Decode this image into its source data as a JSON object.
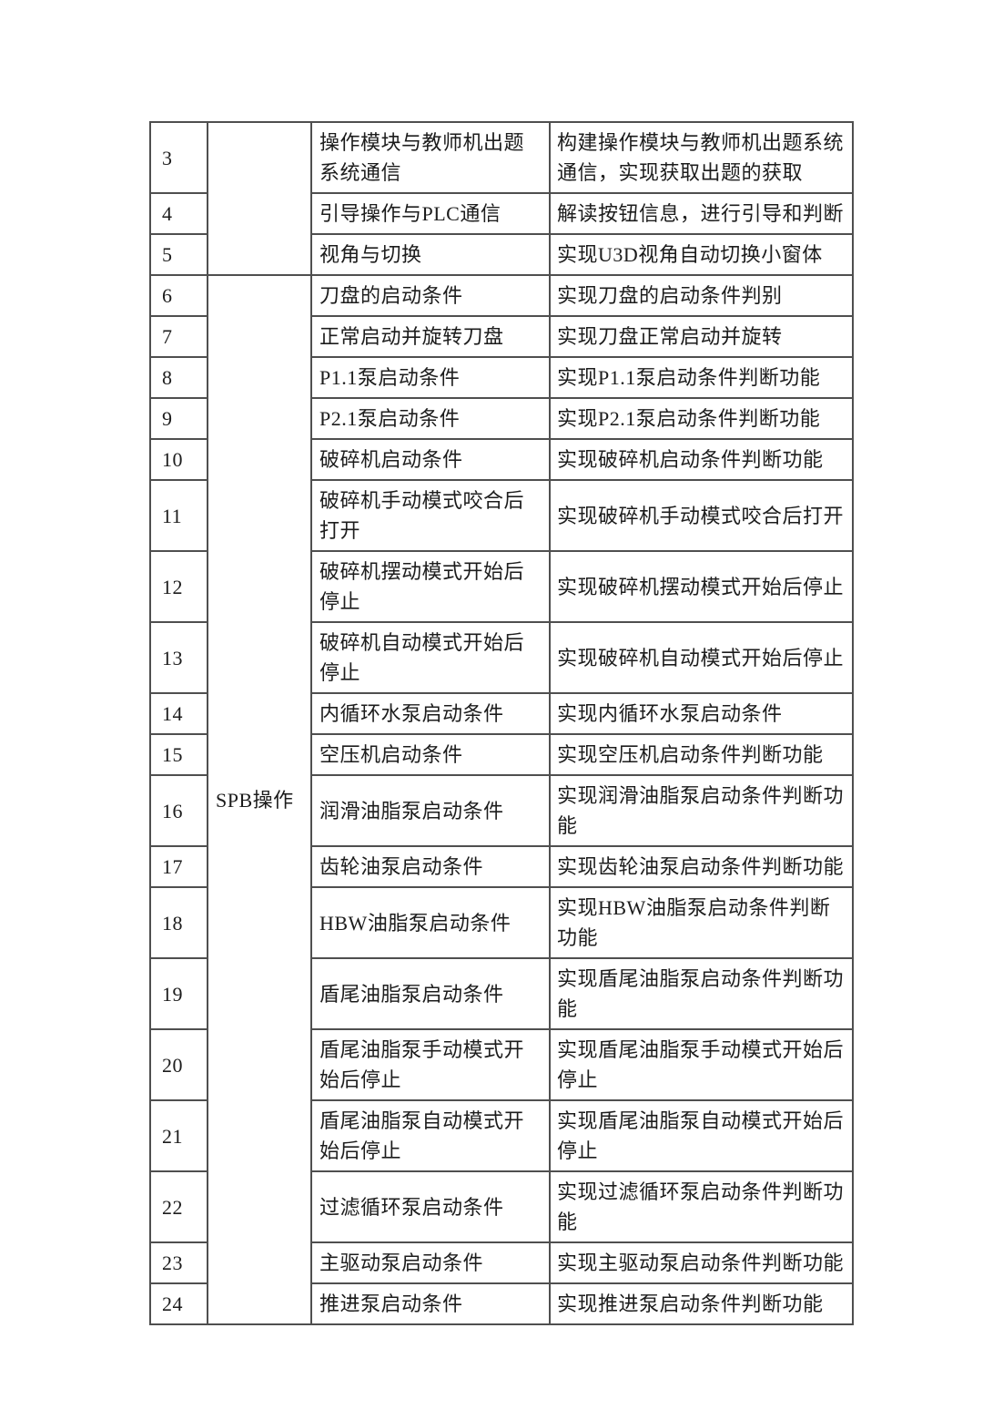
{
  "page": {
    "background_color": "#ffffff"
  },
  "table": {
    "border_color": "#4f4f4f",
    "text_color": "#1c1c1c",
    "sections": [
      {
        "category_label": "",
        "rows": [
          {
            "num": "3",
            "task": "操作模块与教师机出题系统通信",
            "desc": "构建操作模块与教师机出题系统通信，实现获取出题的获取"
          },
          {
            "num": "4",
            "task": "引导操作与PLC通信",
            "desc": "解读按钮信息，进行引导和判断"
          },
          {
            "num": "5",
            "task": "视角与切换",
            "desc": "实现U3D视角自动切换小窗体"
          }
        ]
      },
      {
        "category_label": "SPB操作",
        "rows": [
          {
            "num": "6",
            "task": "刀盘的启动条件",
            "desc": "实现刀盘的启动条件判别"
          },
          {
            "num": "7",
            "task": "正常启动并旋转刀盘",
            "desc": "实现刀盘正常启动并旋转"
          },
          {
            "num": "8",
            "task": "P1.1泵启动条件",
            "desc": "实现P1.1泵启动条件判断功能"
          },
          {
            "num": "9",
            "task": "P2.1泵启动条件",
            "desc": "实现P2.1泵启动条件判断功能"
          },
          {
            "num": "10",
            "task": "破碎机启动条件",
            "desc": "实现破碎机启动条件判断功能"
          },
          {
            "num": "11",
            "task": "破碎机手动模式咬合后打开",
            "desc": "实现破碎机手动模式咬合后打开"
          },
          {
            "num": "12",
            "task": "破碎机摆动模式开始后停止",
            "desc": "实现破碎机摆动模式开始后停止"
          },
          {
            "num": "13",
            "task": "破碎机自动模式开始后停止",
            "desc": "实现破碎机自动模式开始后停止"
          },
          {
            "num": "14",
            "task": "内循环水泵启动条件",
            "desc": "实现内循环水泵启动条件"
          },
          {
            "num": "15",
            "task": "空压机启动条件",
            "desc": "实现空压机启动条件判断功能"
          },
          {
            "num": "16",
            "task": "润滑油脂泵启动条件",
            "desc": "实现润滑油脂泵启动条件判断功能"
          },
          {
            "num": "17",
            "task": "齿轮油泵启动条件",
            "desc": "实现齿轮油泵启动条件判断功能"
          },
          {
            "num": "18",
            "task": "HBW油脂泵启动条件",
            "desc": "实现HBW油脂泵启动条件判断功能"
          },
          {
            "num": "19",
            "task": "盾尾油脂泵启动条件",
            "desc": "实现盾尾油脂泵启动条件判断功能"
          },
          {
            "num": "20",
            "task": "盾尾油脂泵手动模式开始后停止",
            "desc": "实现盾尾油脂泵手动模式开始后停止"
          },
          {
            "num": "21",
            "task": "盾尾油脂泵自动模式开始后停止",
            "desc": "实现盾尾油脂泵自动模式开始后停止"
          },
          {
            "num": "22",
            "task": "过滤循环泵启动条件",
            "desc": "实现过滤循环泵启动条件判断功能"
          },
          {
            "num": "23",
            "task": "主驱动泵启动条件",
            "desc": "实现主驱动泵启动条件判断功能"
          },
          {
            "num": "24",
            "task": "推进泵启动条件",
            "desc": "实现推进泵启动条件判断功能"
          }
        ]
      }
    ]
  }
}
